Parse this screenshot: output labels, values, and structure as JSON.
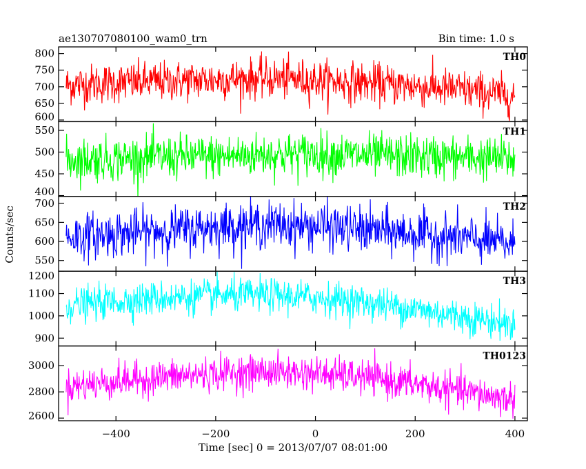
{
  "header": {
    "title": "ae130707080100_wam0_trn",
    "bin_time": "Bin time: 1.0 s"
  },
  "chart_data": {
    "type": "line",
    "xlabel": "Time [sec] 0 = 2013/07/07 08:01:00",
    "ylabel": "Counts/sec",
    "xlim": [
      -515,
      425
    ],
    "xticks": [
      -400,
      -200,
      0,
      200,
      400
    ],
    "x_sampling": {
      "start": -500,
      "end": 400,
      "step": 1
    },
    "panels": [
      {
        "name": "TH0",
        "color": "#ff0000",
        "ylim": [
          595,
          820
        ],
        "yticks": [
          600,
          650,
          700,
          750,
          800
        ],
        "trend_x": [
          -500,
          -400,
          -300,
          -200,
          -100,
          0,
          100,
          200,
          300,
          400
        ],
        "trend_y": [
          705,
          712,
          716,
          722,
          725,
          720,
          712,
          702,
          690,
          672
        ],
        "noise_sd": 30
      },
      {
        "name": "TH1",
        "color": "#00ff00",
        "ylim": [
          398,
          570
        ],
        "yticks": [
          400,
          450,
          500,
          550
        ],
        "trend_x": [
          -500,
          -400,
          -300,
          -200,
          -100,
          0,
          100,
          200,
          300,
          400
        ],
        "trend_y": [
          482,
          485,
          488,
          490,
          494,
          496,
          492,
          490,
          487,
          484
        ],
        "noise_sd": 25
      },
      {
        "name": "TH2",
        "color": "#0000ff",
        "ylim": [
          522,
          718
        ],
        "yticks": [
          550,
          600,
          650,
          700
        ],
        "trend_x": [
          -500,
          -400,
          -300,
          -200,
          -100,
          0,
          100,
          200,
          300,
          400
        ],
        "trend_y": [
          612,
          620,
          628,
          638,
          644,
          640,
          630,
          620,
          608,
          592
        ],
        "noise_sd": 30
      },
      {
        "name": "TH3",
        "color": "#00ffff",
        "ylim": [
          865,
          1200
        ],
        "yticks": [
          900,
          1000,
          1100,
          1200
        ],
        "trend_x": [
          -500,
          -400,
          -300,
          -200,
          -100,
          0,
          100,
          200,
          300,
          400
        ],
        "trend_y": [
          1045,
          1065,
          1080,
          1090,
          1092,
          1082,
          1060,
          1030,
          995,
          960
        ],
        "noise_sd": 38
      },
      {
        "name": "TH0123",
        "color": "#ff00ff",
        "ylim": [
          2580,
          3150
        ],
        "yticks": [
          2600,
          2800,
          3000
        ],
        "trend_x": [
          -500,
          -400,
          -300,
          -200,
          -100,
          0,
          100,
          200,
          300,
          400
        ],
        "trend_y": [
          2840,
          2880,
          2912,
          2940,
          2955,
          2940,
          2910,
          2860,
          2800,
          2740
        ],
        "noise_sd": 65
      }
    ]
  }
}
